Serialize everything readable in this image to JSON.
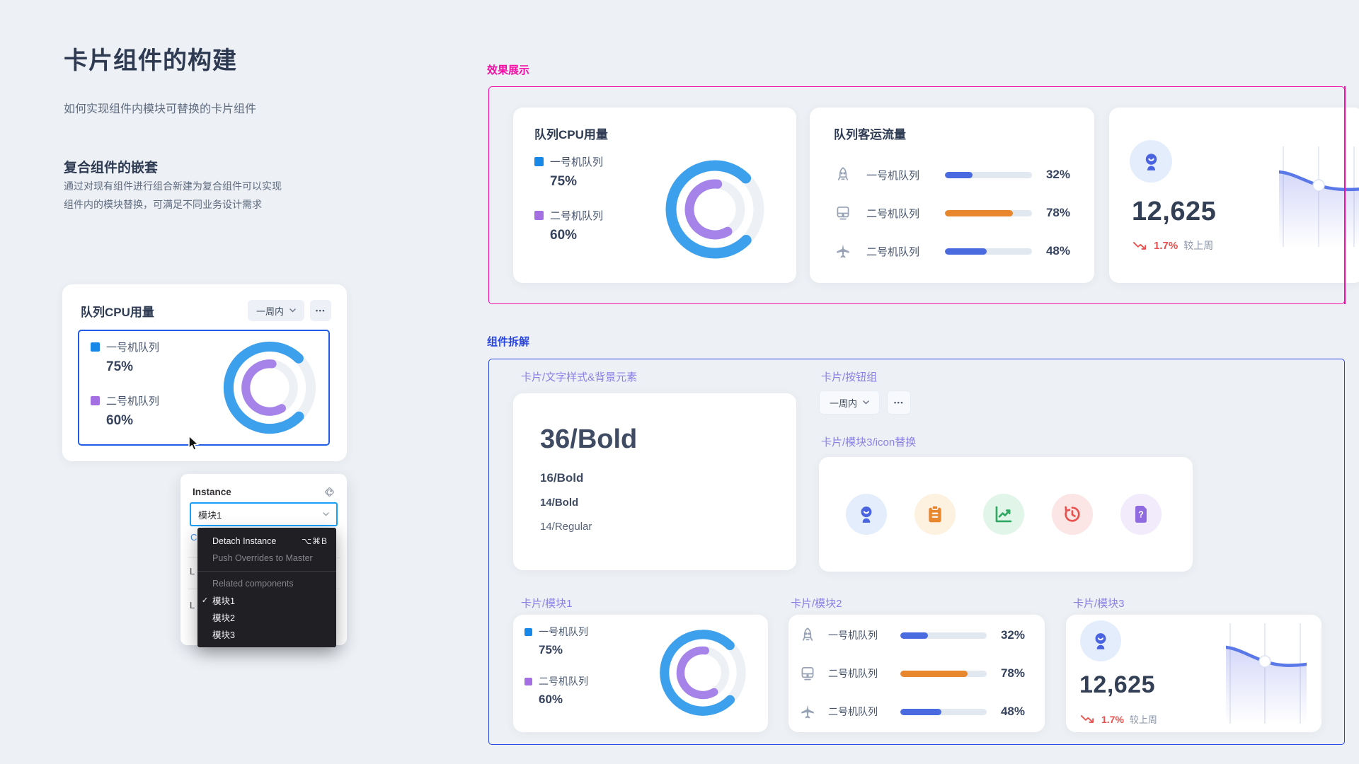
{
  "colors": {
    "accent_pink": "#F50CA5",
    "accent_blue": "#2946E4",
    "label_purple": "#8B80E8",
    "donut_blue": "#3DA0EC",
    "donut_purple": "#A583E8",
    "legend_blue": "#1787E8",
    "legend_purple": "#A46FE3",
    "bar_blue": "#4A6BE0",
    "bar_orange": "#E8872E",
    "delta_red": "#E8514D",
    "selection_blue": "#1F5DE8",
    "figma_blue": "#18A0FB"
  },
  "intro": {
    "title": "卡片组件的构建",
    "subtitle": "如何实现组件内模块可替换的卡片组件",
    "section_heading": "复合组件的嵌套",
    "section_body_1": "通过对现有组件进行组合新建为复合组件可以实现",
    "section_body_2": "组件内的模块替换，可满足不同业务设计需求"
  },
  "card_builder": {
    "title": "队列CPU用量",
    "range_button": "一周内",
    "more_button": "•••"
  },
  "module1": {
    "legend": [
      {
        "label": "一号机队列",
        "value": "75%",
        "pct": 75,
        "color": "#1787E8"
      },
      {
        "label": "二号机队列",
        "value": "60%",
        "pct": 60,
        "color": "#A46FE3"
      }
    ]
  },
  "module2": {
    "title": "队列客运流量",
    "rows": [
      {
        "icon": "rocket-icon",
        "label": "一号机队列",
        "value": "32%",
        "pct": 32,
        "color": "#4A6BE0"
      },
      {
        "icon": "train-icon",
        "label": "二号机队列",
        "value": "78%",
        "pct": 78,
        "color": "#E8872E"
      },
      {
        "icon": "plane-icon",
        "label": "二号机队列",
        "value": "48%",
        "pct": 48,
        "color": "#4A6BE0"
      }
    ]
  },
  "module3": {
    "value": "12,625",
    "delta": "1.7%",
    "delta_note": "较上周"
  },
  "effects": {
    "heading": "效果展示"
  },
  "breakdown": {
    "heading": "组件拆解",
    "label_text_styles": "卡片/文字样式&背景元素",
    "label_buttons": "卡片/按钮组",
    "label_icon_swap": "卡片/模块3/icon替换",
    "label_m1": "卡片/模块1",
    "label_m2": "卡片/模块2",
    "label_m3": "卡片/模块3",
    "text_styles": [
      "36/Bold",
      "16/Bold",
      "14/Bold",
      "14/Regular"
    ],
    "range_button": "一周内",
    "more_button": "•••"
  },
  "icon_swap": {
    "icons": [
      {
        "name": "webcam-icon",
        "bg": "#E4EDFB",
        "fg": "#4A63E0"
      },
      {
        "name": "clipboard-icon",
        "bg": "#FDF1DF",
        "fg": "#E8872E"
      },
      {
        "name": "line-chart-icon",
        "bg": "#E2F5E9",
        "fg": "#2FA862"
      },
      {
        "name": "history-icon",
        "bg": "#FBE5E5",
        "fg": "#E8514D"
      },
      {
        "name": "question-file-icon",
        "bg": "#F1EBFB",
        "fg": "#8F6AE0"
      }
    ]
  },
  "instance_panel": {
    "title": "Instance",
    "dropdown_value": "模块1",
    "hidden_fragment_1": "C",
    "hidden_fragment_2": "L",
    "hidden_fragment_3": "L"
  },
  "context_menu": {
    "detach": "Detach Instance",
    "detach_shortcut": "⌥⌘B",
    "push_overrides": "Push Overrides to Master",
    "related_header": "Related components",
    "check_glyph": "✓",
    "options": [
      {
        "label": "模块1",
        "checked": true
      },
      {
        "label": "模块2",
        "checked": false
      },
      {
        "label": "模块3",
        "checked": false
      }
    ]
  }
}
